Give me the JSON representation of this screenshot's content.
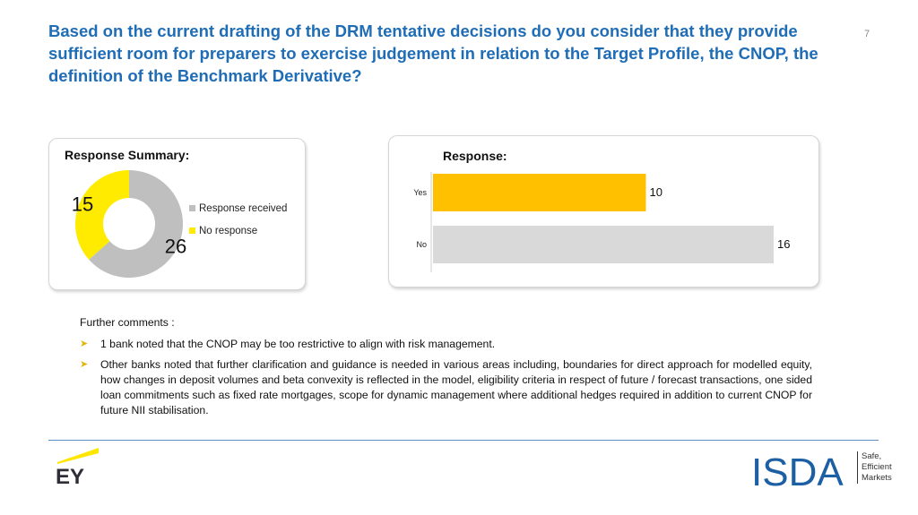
{
  "title": "Based on the current drafting of the DRM tentative decisions do you consider that they provide sufficient room for preparers to exercise judgement in relation to the Target Profile, the CNOP, the definition of the Benchmark Derivative?",
  "page_number": "7",
  "summary": {
    "heading": "Response Summary:",
    "legend": [
      "Response received",
      "No response"
    ]
  },
  "response": {
    "heading": "Response:"
  },
  "chart_data": [
    {
      "type": "pie",
      "title": "Response Summary:",
      "categories": [
        "Response received",
        "No response"
      ],
      "values": [
        26,
        15
      ],
      "colors": [
        "#bfbfbf",
        "#ffeb00"
      ],
      "data_labels": [
        "26",
        "15"
      ],
      "legend_placement": "right"
    },
    {
      "type": "bar",
      "orientation": "horizontal",
      "title": "Response:",
      "categories": [
        "Yes",
        "No"
      ],
      "values": [
        10,
        16
      ],
      "colors": [
        "#ffc000",
        "#d9d9d9"
      ],
      "data_labels": [
        "10",
        "16"
      ],
      "xlim": [
        0,
        16
      ],
      "grid": false
    }
  ],
  "comments": {
    "heading": "Further comments :",
    "items": [
      "1 bank noted that the CNOP may be too restrictive to align with risk management.",
      "Other banks noted that further clarification and guidance is needed in various areas including, boundaries for direct approach for modelled equity, how changes in deposit volumes and beta convexity is reflected in the model, eligibility criteria in respect of future / forecast transactions, one sided loan commitments such as fixed rate mortgages, scope for dynamic management where additional hedges required in addition to current CNOP for future NII stabilisation."
    ]
  },
  "footer": {
    "ey_logo": "EY",
    "isda_logo": "ISDA",
    "isda_tagline": [
      "Safe,",
      "Efficient",
      "Markets"
    ]
  },
  "colors": {
    "title": "#1f6db6",
    "accent_yellow": "#ffeb00",
    "bar_yes": "#ffc000",
    "bar_no": "#d9d9d9",
    "isda_blue": "#1d5fa5"
  }
}
